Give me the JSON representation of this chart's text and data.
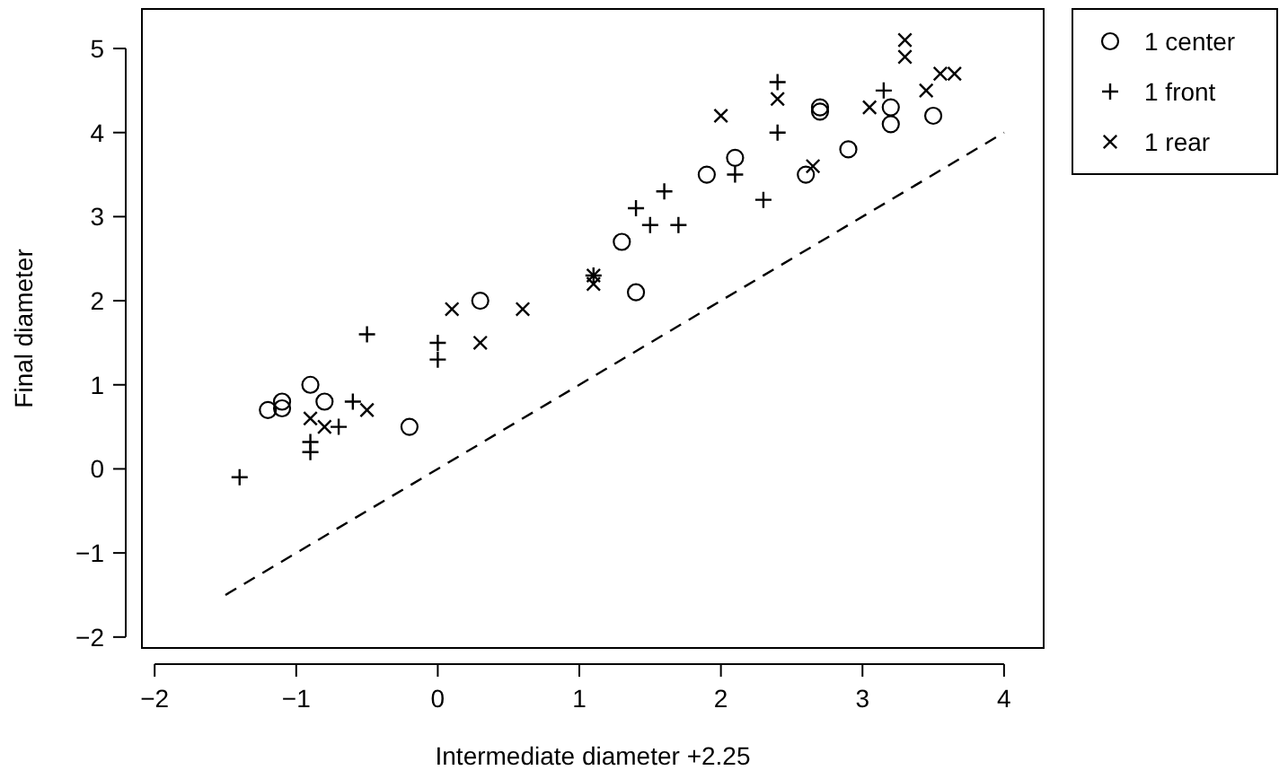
{
  "chart_data": {
    "type": "scatter",
    "xlabel": "Intermediate diameter +2.25",
    "ylabel": "Final diameter",
    "xlim": [
      -2.09,
      4.28
    ],
    "ylim": [
      -2.13,
      5.47
    ],
    "xticks": [
      {
        "value": -2,
        "label": "−2"
      },
      {
        "value": -1,
        "label": "−1"
      },
      0,
      1,
      2,
      3,
      4
    ],
    "yticks": [
      {
        "value": -2,
        "label": "−2"
      },
      {
        "value": -1,
        "label": "−1"
      },
      0,
      1,
      2,
      3,
      4,
      5
    ],
    "grid": false,
    "legend": "top right",
    "series": [
      {
        "name": "1 center",
        "color": "#000000",
        "marker": "circle",
        "x": [
          -1.2,
          -1.1,
          -1.1,
          -0.9,
          -0.8,
          -0.2,
          0.3,
          1.3,
          1.4,
          1.9,
          2.1,
          2.6,
          2.7,
          2.7,
          2.9,
          3.2,
          3.2,
          3.5
        ],
        "values": [
          0.7,
          0.8,
          0.72,
          1.0,
          0.8,
          0.5,
          2.0,
          2.7,
          2.1,
          3.5,
          3.7,
          3.5,
          4.3,
          4.25,
          3.8,
          4.3,
          4.1,
          4.2
        ]
      },
      {
        "name": "1 front",
        "color": "#000000",
        "marker": "plus",
        "x": [
          -1.4,
          -0.9,
          -0.9,
          -0.7,
          -0.6,
          -0.5,
          0,
          0,
          1.1,
          1.4,
          1.5,
          1.6,
          1.7,
          2.1,
          2.3,
          2.4,
          2.4,
          3.15
        ],
        "values": [
          -0.1,
          0.32,
          0.2,
          0.5,
          0.8,
          1.6,
          1.5,
          1.3,
          2.3,
          3.1,
          2.9,
          3.3,
          2.9,
          3.5,
          3.2,
          4.0,
          4.6,
          4.5
        ]
      },
      {
        "name": "1 rear",
        "color": "#000000",
        "marker": "cross",
        "x": [
          -0.9,
          -0.8,
          -0.5,
          0.1,
          0.3,
          0.6,
          1.1,
          1.1,
          2.0,
          2.4,
          2.65,
          3.05,
          3.3,
          3.3,
          3.45,
          3.55,
          3.65
        ],
        "values": [
          0.6,
          0.5,
          0.7,
          1.9,
          1.5,
          1.9,
          2.3,
          2.2,
          4.2,
          4.4,
          3.6,
          4.3,
          5.1,
          4.9,
          4.5,
          4.7,
          4.7
        ]
      },
      {
        "type": "line",
        "color": "#000000",
        "marker": "none",
        "line_style": "dashed",
        "x": [
          -1.5,
          4
        ],
        "values": [
          -1.5,
          4
        ]
      }
    ]
  }
}
